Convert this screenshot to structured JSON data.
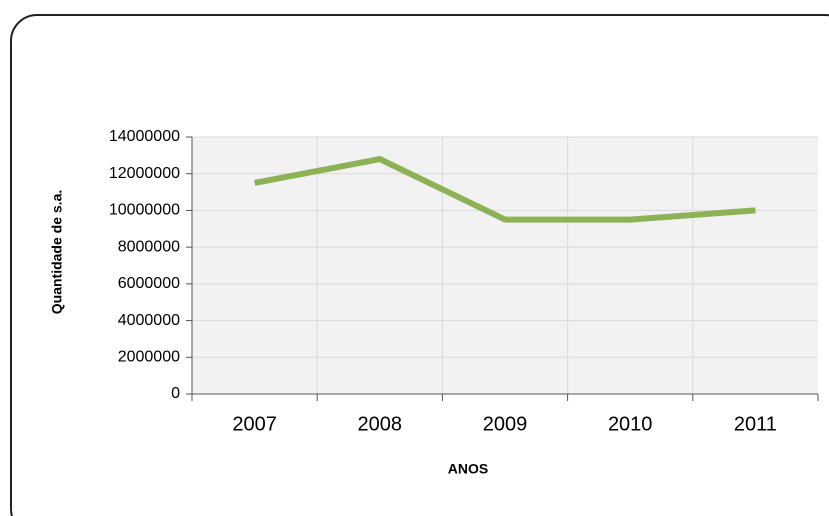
{
  "chart_data": {
    "type": "line",
    "x_label": "ANOS",
    "y_label": "Quantidade de s.a.",
    "categories": [
      "2007",
      "2008",
      "2009",
      "2010",
      "2011"
    ],
    "series": [
      {
        "name": "Quantidade de s.a.",
        "color": "#8db255",
        "values": [
          11500000,
          12800000,
          9500000,
          9500000,
          10000000
        ]
      }
    ],
    "ylim": [
      0,
      14000000
    ],
    "yticks": [
      0,
      2000000,
      4000000,
      6000000,
      8000000,
      10000000,
      12000000,
      14000000
    ],
    "grid": true,
    "legend": false
  }
}
